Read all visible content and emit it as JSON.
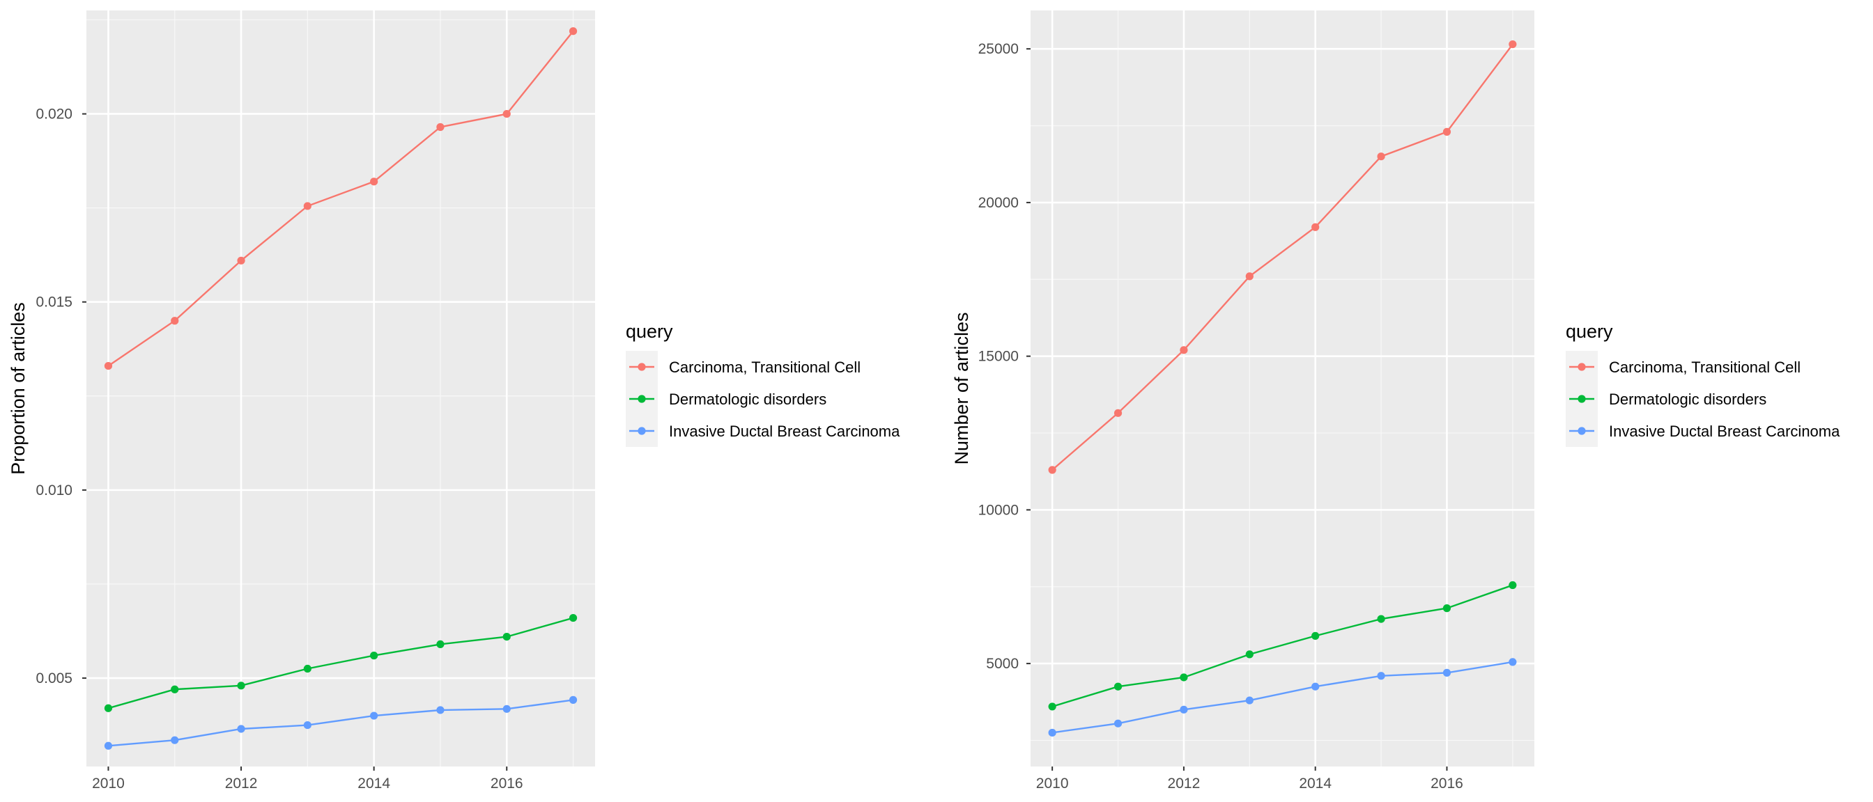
{
  "chart_data": [
    {
      "type": "line",
      "ylabel": "Proportion of articles",
      "xlabel": "",
      "x": [
        2010,
        2011,
        2012,
        2013,
        2014,
        2015,
        2016,
        2017
      ],
      "xticks": [
        "2010",
        "2012",
        "2014",
        "2016"
      ],
      "yticks": [
        "0.005",
        "0.010",
        "0.015",
        "0.020"
      ],
      "xlim": [
        2009.67,
        2017.33
      ],
      "ylim": [
        0.00265,
        0.02275
      ],
      "grid": true,
      "legend": {
        "title": "query",
        "position": "right"
      },
      "series": [
        {
          "name": "Carcinoma, Transitional Cell",
          "color": "#F8766D",
          "values": [
            0.0133,
            0.0145,
            0.0161,
            0.01755,
            0.0182,
            0.01965,
            0.02,
            0.0222
          ]
        },
        {
          "name": "Dermatologic disorders",
          "color": "#00BA38",
          "values": [
            0.0042,
            0.0047,
            0.0048,
            0.00525,
            0.0056,
            0.0059,
            0.0061,
            0.0066
          ]
        },
        {
          "name": "Invasive Ductal Breast Carcinoma",
          "color": "#619CFF",
          "values": [
            0.0032,
            0.00335,
            0.00365,
            0.00375,
            0.004,
            0.00415,
            0.00418,
            0.00442
          ]
        }
      ]
    },
    {
      "type": "line",
      "ylabel": "Number of articles",
      "xlabel": "",
      "x": [
        2010,
        2011,
        2012,
        2013,
        2014,
        2015,
        2016,
        2017
      ],
      "xticks": [
        "2010",
        "2012",
        "2014",
        "2016"
      ],
      "yticks": [
        "5000",
        "10000",
        "15000",
        "20000",
        "25000"
      ],
      "xlim": [
        2009.67,
        2017.33
      ],
      "ylim": [
        1650,
        26250
      ],
      "grid": true,
      "legend": {
        "title": "query",
        "position": "right"
      },
      "series": [
        {
          "name": "Carcinoma, Transitional Cell",
          "color": "#F8766D",
          "values": [
            11300,
            13150,
            15200,
            17600,
            19200,
            21500,
            22300,
            25150
          ]
        },
        {
          "name": "Dermatologic disorders",
          "color": "#00BA38",
          "values": [
            3600,
            4250,
            4550,
            5300,
            5900,
            6450,
            6800,
            7550
          ]
        },
        {
          "name": "Invasive Ductal Breast Carcinoma",
          "color": "#619CFF",
          "values": [
            2750,
            3050,
            3500,
            3800,
            4250,
            4600,
            4700,
            5050
          ]
        }
      ]
    }
  ]
}
